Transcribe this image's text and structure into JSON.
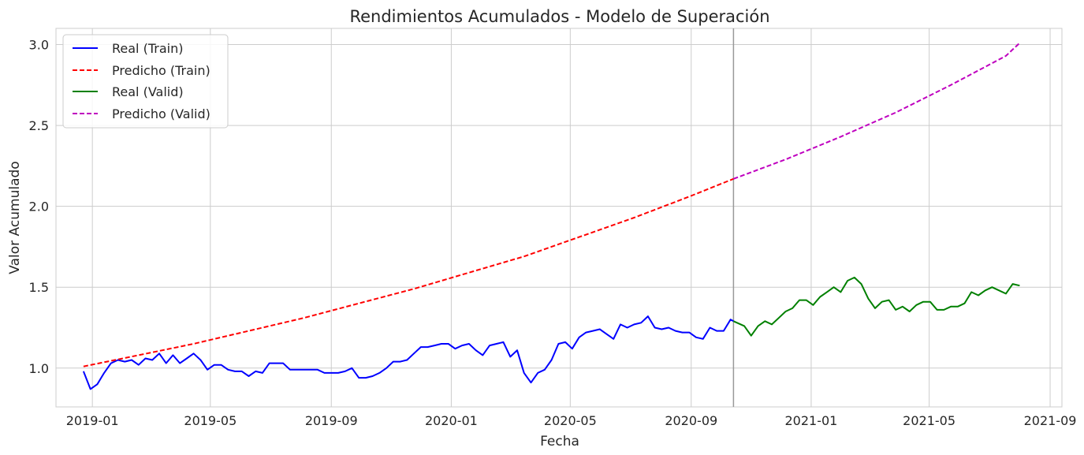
{
  "chart_data": {
    "type": "line",
    "title": "Rendimientos Acumulados - Modelo de Superación",
    "xlabel": "Fecha",
    "ylabel": "Valor Acumulado",
    "x_ticks": [
      "2019-01",
      "2019-05",
      "2019-09",
      "2020-01",
      "2020-05",
      "2020-09",
      "2021-01",
      "2021-05",
      "2021-09"
    ],
    "y_ticks": [
      "1.0",
      "1.5",
      "2.0",
      "2.5",
      "3.0"
    ],
    "xlim": [
      "2018-11-25",
      "2021-09-13"
    ],
    "ylim": [
      0.76,
      3.1
    ],
    "grid": true,
    "legend": "top-left",
    "split_date": "2020-10-14",
    "series": [
      {
        "name": "Real (Train)",
        "color": "#0000ff",
        "dash": "solid",
        "points": [
          [
            "2018-12-23",
            0.98
          ],
          [
            "2018-12-30",
            0.87
          ],
          [
            "2019-01-06",
            0.9
          ],
          [
            "2019-01-13",
            0.97
          ],
          [
            "2019-01-20",
            1.03
          ],
          [
            "2019-01-27",
            1.05
          ],
          [
            "2019-02-03",
            1.04
          ],
          [
            "2019-02-10",
            1.05
          ],
          [
            "2019-02-17",
            1.02
          ],
          [
            "2019-02-24",
            1.06
          ],
          [
            "2019-03-03",
            1.05
          ],
          [
            "2019-03-10",
            1.09
          ],
          [
            "2019-03-17",
            1.03
          ],
          [
            "2019-03-24",
            1.08
          ],
          [
            "2019-03-31",
            1.03
          ],
          [
            "2019-04-07",
            1.06
          ],
          [
            "2019-04-14",
            1.09
          ],
          [
            "2019-04-21",
            1.05
          ],
          [
            "2019-04-28",
            0.99
          ],
          [
            "2019-05-05",
            1.02
          ],
          [
            "2019-05-12",
            1.02
          ],
          [
            "2019-05-19",
            0.99
          ],
          [
            "2019-05-26",
            0.98
          ],
          [
            "2019-06-02",
            0.98
          ],
          [
            "2019-06-09",
            0.95
          ],
          [
            "2019-06-16",
            0.98
          ],
          [
            "2019-06-23",
            0.97
          ],
          [
            "2019-06-30",
            1.03
          ],
          [
            "2019-07-07",
            1.03
          ],
          [
            "2019-07-14",
            1.03
          ],
          [
            "2019-07-21",
            0.99
          ],
          [
            "2019-07-28",
            0.99
          ],
          [
            "2019-08-04",
            0.99
          ],
          [
            "2019-08-11",
            0.99
          ],
          [
            "2019-08-18",
            0.99
          ],
          [
            "2019-08-25",
            0.97
          ],
          [
            "2019-09-01",
            0.97
          ],
          [
            "2019-09-08",
            0.97
          ],
          [
            "2019-09-15",
            0.98
          ],
          [
            "2019-09-22",
            1.0
          ],
          [
            "2019-09-29",
            0.94
          ],
          [
            "2019-10-06",
            0.94
          ],
          [
            "2019-10-13",
            0.95
          ],
          [
            "2019-10-20",
            0.97
          ],
          [
            "2019-10-27",
            1.0
          ],
          [
            "2019-11-03",
            1.04
          ],
          [
            "2019-11-10",
            1.04
          ],
          [
            "2019-11-17",
            1.05
          ],
          [
            "2019-11-24",
            1.09
          ],
          [
            "2019-12-01",
            1.13
          ],
          [
            "2019-12-08",
            1.13
          ],
          [
            "2019-12-15",
            1.14
          ],
          [
            "2019-12-22",
            1.15
          ],
          [
            "2019-12-29",
            1.15
          ],
          [
            "2020-01-05",
            1.12
          ],
          [
            "2020-01-12",
            1.14
          ],
          [
            "2020-01-19",
            1.15
          ],
          [
            "2020-01-26",
            1.11
          ],
          [
            "2020-02-02",
            1.08
          ],
          [
            "2020-02-09",
            1.14
          ],
          [
            "2020-02-16",
            1.15
          ],
          [
            "2020-02-23",
            1.16
          ],
          [
            "2020-03-01",
            1.07
          ],
          [
            "2020-03-08",
            1.11
          ],
          [
            "2020-03-15",
            0.97
          ],
          [
            "2020-03-22",
            0.91
          ],
          [
            "2020-03-29",
            0.97
          ],
          [
            "2020-04-05",
            0.99
          ],
          [
            "2020-04-12",
            1.05
          ],
          [
            "2020-04-19",
            1.15
          ],
          [
            "2020-04-26",
            1.16
          ],
          [
            "2020-05-03",
            1.12
          ],
          [
            "2020-05-10",
            1.19
          ],
          [
            "2020-05-17",
            1.22
          ],
          [
            "2020-05-24",
            1.23
          ],
          [
            "2020-05-31",
            1.24
          ],
          [
            "2020-06-07",
            1.21
          ],
          [
            "2020-06-14",
            1.18
          ],
          [
            "2020-06-21",
            1.27
          ],
          [
            "2020-06-28",
            1.25
          ],
          [
            "2020-07-05",
            1.27
          ],
          [
            "2020-07-12",
            1.28
          ],
          [
            "2020-07-19",
            1.32
          ],
          [
            "2020-07-26",
            1.25
          ],
          [
            "2020-08-02",
            1.24
          ],
          [
            "2020-08-09",
            1.25
          ],
          [
            "2020-08-16",
            1.23
          ],
          [
            "2020-08-23",
            1.22
          ],
          [
            "2020-08-30",
            1.22
          ],
          [
            "2020-09-06",
            1.19
          ],
          [
            "2020-09-13",
            1.18
          ],
          [
            "2020-09-20",
            1.25
          ],
          [
            "2020-09-27",
            1.23
          ],
          [
            "2020-10-04",
            1.23
          ],
          [
            "2020-10-11",
            1.3
          ],
          [
            "2020-10-14",
            1.29
          ]
        ]
      },
      {
        "name": "Predicho (Train)",
        "color": "#ff0000",
        "dash": "dashed",
        "points": [
          [
            "2018-12-23",
            1.01
          ],
          [
            "2019-02-17",
            1.08
          ],
          [
            "2019-04-14",
            1.15
          ],
          [
            "2019-06-09",
            1.23
          ],
          [
            "2019-08-04",
            1.31
          ],
          [
            "2019-09-29",
            1.4
          ],
          [
            "2019-11-24",
            1.49
          ],
          [
            "2020-01-19",
            1.59
          ],
          [
            "2020-03-15",
            1.69
          ],
          [
            "2020-05-10",
            1.81
          ],
          [
            "2020-07-05",
            1.93
          ],
          [
            "2020-08-30",
            2.06
          ],
          [
            "2020-10-14",
            2.17
          ]
        ]
      },
      {
        "name": "Real (Valid)",
        "color": "#008000",
        "dash": "solid",
        "points": [
          [
            "2020-10-14",
            1.29
          ],
          [
            "2020-10-25",
            1.26
          ],
          [
            "2020-11-01",
            1.2
          ],
          [
            "2020-11-08",
            1.26
          ],
          [
            "2020-11-15",
            1.29
          ],
          [
            "2020-11-22",
            1.27
          ],
          [
            "2020-11-29",
            1.31
          ],
          [
            "2020-12-06",
            1.35
          ],
          [
            "2020-12-13",
            1.37
          ],
          [
            "2020-12-20",
            1.42
          ],
          [
            "2020-12-27",
            1.42
          ],
          [
            "2021-01-03",
            1.39
          ],
          [
            "2021-01-10",
            1.44
          ],
          [
            "2021-01-17",
            1.47
          ],
          [
            "2021-01-24",
            1.5
          ],
          [
            "2021-01-31",
            1.47
          ],
          [
            "2021-02-07",
            1.54
          ],
          [
            "2021-02-14",
            1.56
          ],
          [
            "2021-02-21",
            1.52
          ],
          [
            "2021-02-28",
            1.43
          ],
          [
            "2021-03-07",
            1.37
          ],
          [
            "2021-03-14",
            1.41
          ],
          [
            "2021-03-21",
            1.42
          ],
          [
            "2021-03-28",
            1.36
          ],
          [
            "2021-04-04",
            1.38
          ],
          [
            "2021-04-11",
            1.35
          ],
          [
            "2021-04-18",
            1.39
          ],
          [
            "2021-04-25",
            1.41
          ],
          [
            "2021-05-02",
            1.41
          ],
          [
            "2021-05-09",
            1.36
          ],
          [
            "2021-05-16",
            1.36
          ],
          [
            "2021-05-23",
            1.38
          ],
          [
            "2021-05-30",
            1.38
          ],
          [
            "2021-06-06",
            1.4
          ],
          [
            "2021-06-13",
            1.47
          ],
          [
            "2021-06-20",
            1.45
          ],
          [
            "2021-06-27",
            1.48
          ],
          [
            "2021-07-04",
            1.5
          ],
          [
            "2021-07-11",
            1.48
          ],
          [
            "2021-07-18",
            1.46
          ],
          [
            "2021-07-25",
            1.52
          ],
          [
            "2021-08-01",
            1.51
          ]
        ]
      },
      {
        "name": "Predicho (Valid)",
        "color": "#bf00bf",
        "dash": "dashed",
        "points": [
          [
            "2020-10-14",
            2.17
          ],
          [
            "2020-12-06",
            2.29
          ],
          [
            "2021-01-31",
            2.43
          ],
          [
            "2021-03-28",
            2.58
          ],
          [
            "2021-05-23",
            2.75
          ],
          [
            "2021-07-18",
            2.93
          ],
          [
            "2021-08-01",
            3.01
          ]
        ]
      }
    ]
  }
}
